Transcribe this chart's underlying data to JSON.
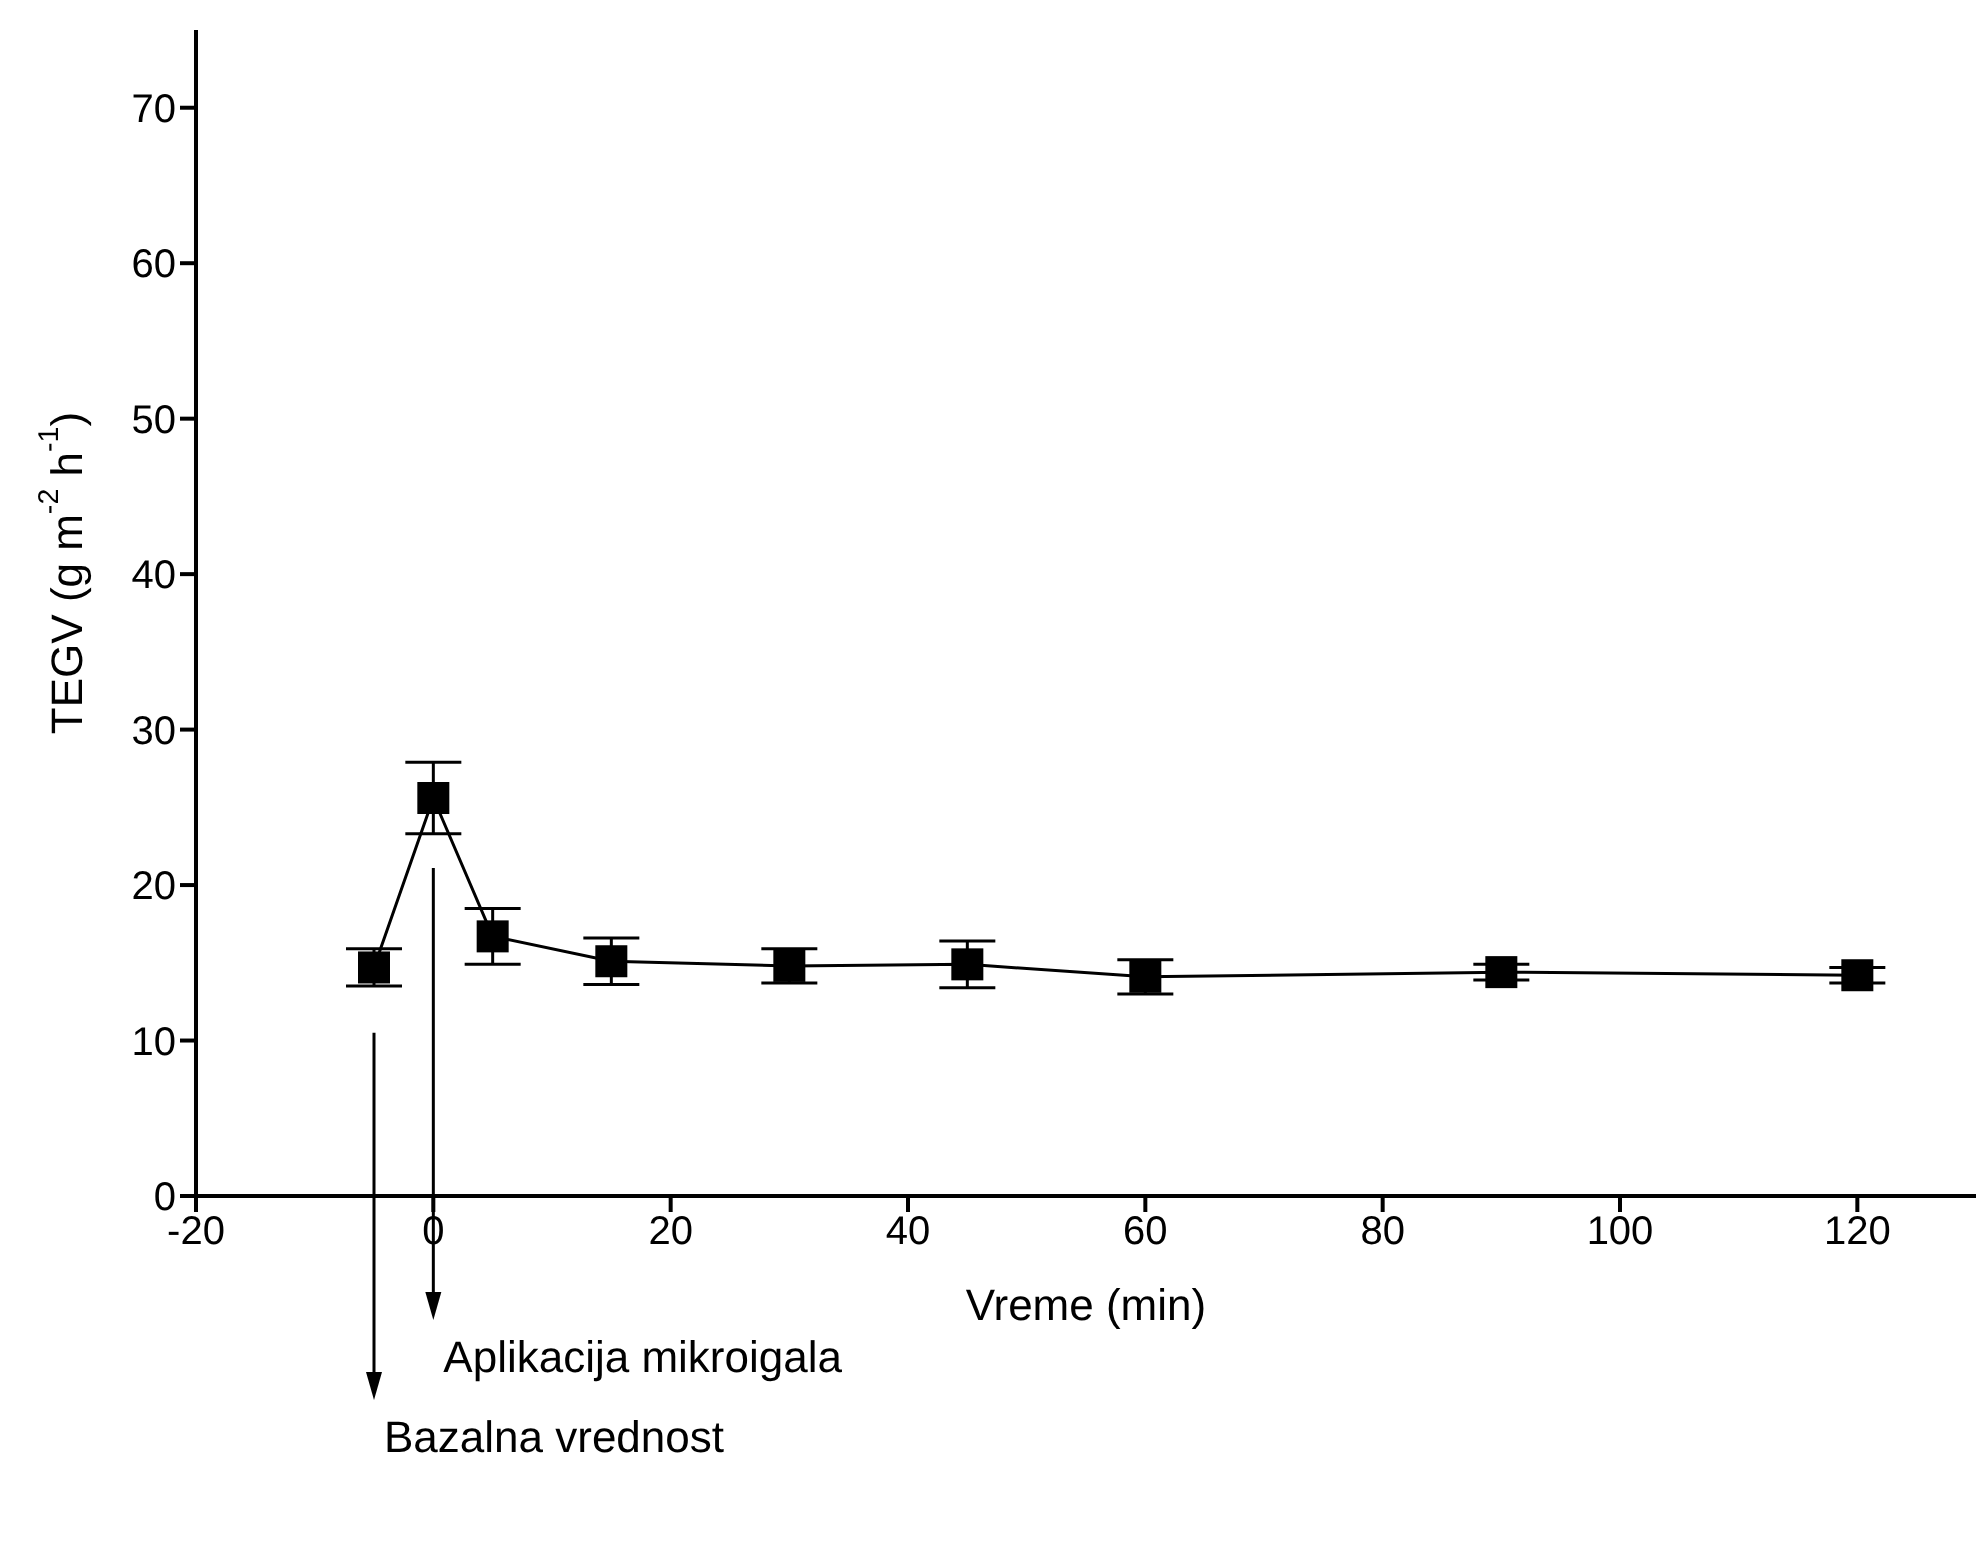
{
  "chart_data": {
    "type": "line",
    "xlabel": "Vreme (min)",
    "ylabel": "TEGV (g m$^{-2}$ h$^{-1}$)",
    "x": [
      -5,
      0,
      5,
      15,
      30,
      45,
      60,
      90,
      120
    ],
    "series": [
      {
        "color": "#000000",
        "values": [
          14.7,
          25.6,
          16.7,
          15.1,
          14.8,
          14.9,
          14.1,
          14.4,
          14.2
        ],
        "errors": [
          1.2,
          2.3,
          1.8,
          1.5,
          1.1,
          1.5,
          1.1,
          0.5,
          0.5
        ]
      }
    ],
    "xlim": [
      -20,
      130
    ],
    "ylim": [
      0,
      75
    ],
    "xticks": [
      -20,
      0,
      20,
      40,
      60,
      80,
      100,
      120
    ],
    "yticks": [
      0,
      10,
      20,
      30,
      40,
      50,
      60,
      70
    ],
    "marker": "square",
    "line_style": "solid",
    "grid": false,
    "legend": false,
    "annotations": [
      "Bazalna vrednost",
      "Aplikacija mikroigala"
    ]
  }
}
